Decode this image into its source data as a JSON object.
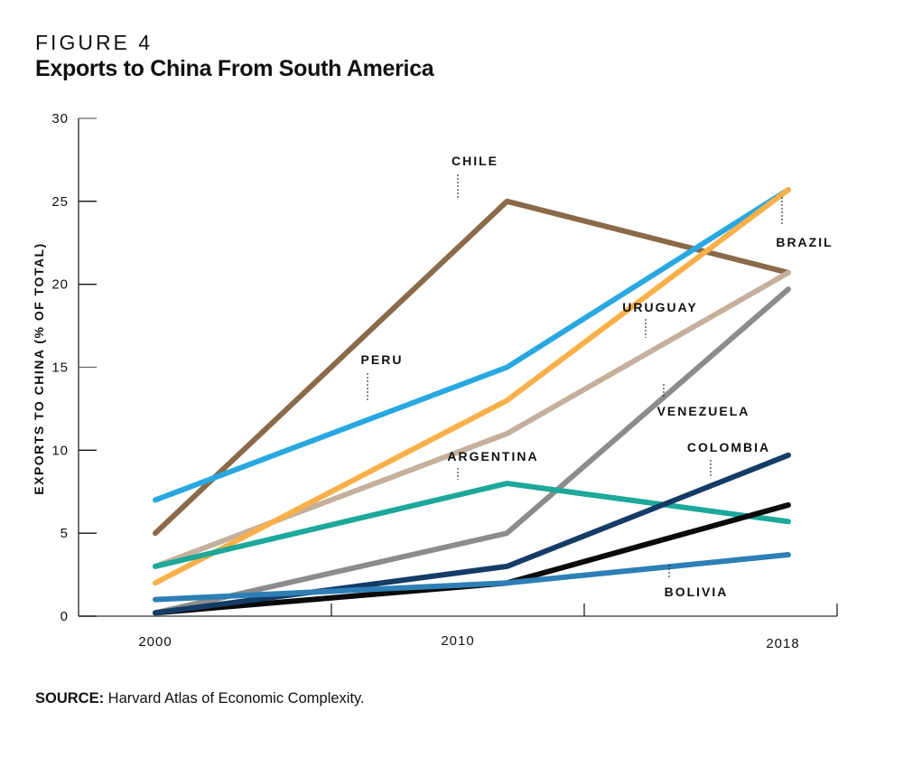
{
  "figure_label": "FIGURE 4",
  "title": "Exports to China From South America",
  "source_prefix": "SOURCE:",
  "source_text": " Harvard Atlas of Economic Complexity.",
  "chart_data": {
    "type": "line",
    "title": "Exports to China From South America",
    "xlabel": "",
    "ylabel": "EXPORTS TO CHINA (% OF TOTAL)",
    "x": [
      2000,
      2010,
      2018
    ],
    "x_tick_labels": [
      "2000",
      "2010",
      "2018"
    ],
    "ylim": [
      0,
      30
    ],
    "y_ticks": [
      0,
      5,
      10,
      15,
      20,
      25,
      30
    ],
    "y_tick_labels": [
      "0",
      "5",
      "10",
      "15",
      "20",
      "25",
      "30"
    ],
    "grid": false,
    "legend": "inline-labels",
    "series": [
      {
        "name": "Chile",
        "label": "CHILE",
        "color": "#8B6A4A",
        "values": [
          5,
          25,
          20.7
        ]
      },
      {
        "name": "Uruguay",
        "label": "URUGUAY",
        "color": "#C4B09C",
        "values": [
          3,
          11,
          20.7
        ]
      },
      {
        "name": "Venezuela",
        "label": "VENEZUELA",
        "color": "#8C8C8E",
        "values": [
          0.2,
          5,
          19.7
        ]
      },
      {
        "name": "Peru",
        "label": "PERU",
        "color": "#29A8E0",
        "values": [
          7,
          15,
          25.7
        ]
      },
      {
        "name": "Brazil",
        "label": "BRAZIL",
        "color": "#F9B04A",
        "values": [
          2,
          13,
          25.7
        ]
      },
      {
        "name": "Argentina",
        "label": "ARGENTINA",
        "color": "#1DA89A",
        "values": [
          3,
          8,
          5.7
        ]
      },
      {
        "name": "Unlabeled (black)",
        "label": "",
        "color": "#0A0A0A",
        "values": [
          0.2,
          2,
          6.7
        ]
      },
      {
        "name": "Colombia",
        "label": "COLOMBIA",
        "color": "#143C66",
        "values": [
          0.2,
          3,
          9.7
        ]
      },
      {
        "name": "Bolivia",
        "label": "BOLIVIA",
        "color": "#2E7FB6",
        "values": [
          1,
          2,
          3.7
        ]
      }
    ],
    "annotations": [
      {
        "series": "CHILE",
        "at_x": 2010
      },
      {
        "series": "PERU",
        "at_x": 2006.5
      },
      {
        "series": "ARGENTINA",
        "at_x": 2010
      },
      {
        "series": "URUGUAY",
        "at_x": 2015.6
      },
      {
        "series": "VENEZUELA",
        "at_x": 2015.6
      },
      {
        "series": "BRAZIL",
        "at_x": 2018
      },
      {
        "series": "COLOMBIA",
        "at_x": 2016.4
      },
      {
        "series": "BOLIVIA",
        "at_x": 2016.0
      }
    ]
  }
}
